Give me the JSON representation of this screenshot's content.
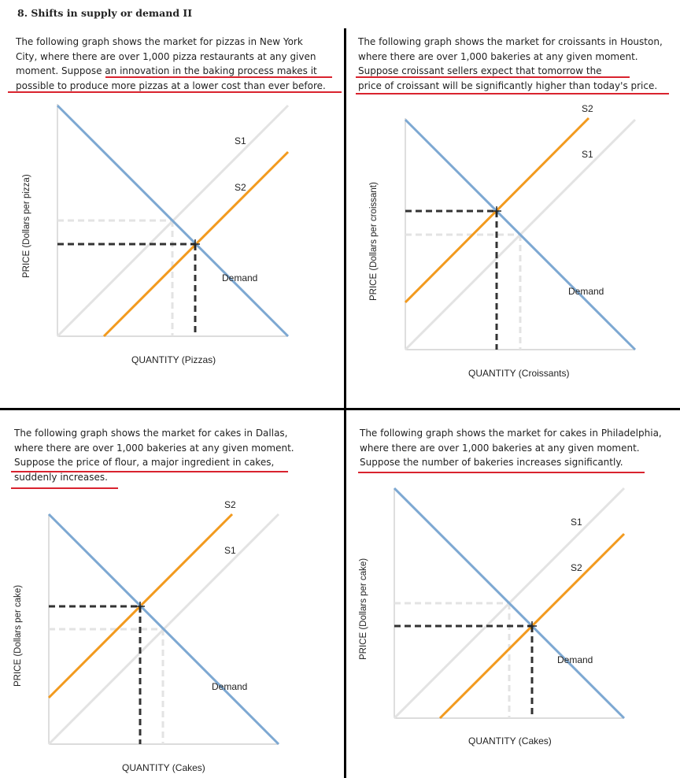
{
  "title": "8. Shifts in supply or demand II",
  "panels": [
    {
      "desc": [
        "The following graph shows the market for pizzas in New York",
        "City, where there are over 1,000 pizza restaurants at any given",
        "moment. Suppose an innovation in the baking process makes it",
        "possible to produce more pizzas at a lower cost than ever before."
      ],
      "ylabel": "PRICE (Dollars per pizza)",
      "xlabel": "QUANTITY (Pizzas)",
      "s1": "S1",
      "s2": "S2",
      "demand": "Demand"
    },
    {
      "desc": [
        "The following graph shows the market for croissants in Houston,",
        "where there are over 1,000 bakeries at any given moment.",
        "Suppose croissant sellers expect that tomorrow the",
        "price of croissant will be significantly higher than today's price."
      ],
      "ylabel": "PRICE (Dollars per croissant)",
      "xlabel": "QUANTITY (Croissants)",
      "s1": "S1",
      "s2": "S2",
      "demand": "Demand"
    },
    {
      "desc": [
        "The following graph shows the market for cakes in Dallas,",
        "where there are over 1,000 bakeries at any given moment.",
        "Suppose the price of flour, a major ingredient in cakes,",
        "suddenly increases."
      ],
      "ylabel": "PRICE (Dollars per cake)",
      "xlabel": "QUANTITY (Cakes)",
      "s1": "S1",
      "s2": "S2",
      "demand": "Demand"
    },
    {
      "desc": [
        "The following graph shows the market for cakes in Philadelphia,",
        "where there are over 1,000 bakeries at any given moment.",
        "Suppose the number of bakeries increases significantly."
      ],
      "ylabel": "PRICE (Dollars per cake)",
      "xlabel": "QUANTITY (Cakes)",
      "s1": "S1",
      "s2": "S2",
      "demand": "Demand"
    }
  ],
  "colors": {
    "demand": "#7da8d2",
    "new_supply": "#f29a1e",
    "old_supply": "#e3e3e3",
    "underline": "#d9232e",
    "divider": "#000000"
  }
}
